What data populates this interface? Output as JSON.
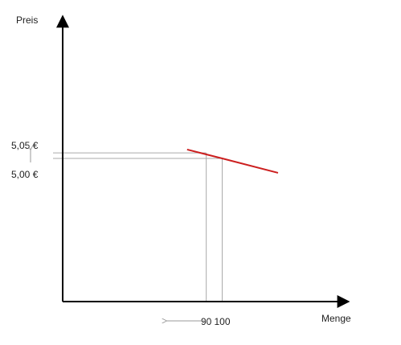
{
  "chart_data": {
    "type": "line",
    "title": "",
    "xlabel": "Menge",
    "ylabel": "Preis",
    "grid": false,
    "colors": {
      "demand_line": "#cc1f1f",
      "axis": "#000000",
      "guides": "#aaaaaa"
    },
    "series": [
      {
        "points": [
          {
            "x": 78,
            "y": 5.08
          },
          {
            "x": 100,
            "y": 5.0
          },
          {
            "x": 135,
            "y": 4.87
          }
        ]
      }
    ],
    "reference_x": [
      {
        "value": 90,
        "label": "90"
      },
      {
        "value": 100,
        "label": "100"
      }
    ],
    "reference_y": [
      {
        "value": 5.05,
        "label": "5,05 €"
      },
      {
        "value": 5.0,
        "label": "5,00 €"
      }
    ],
    "annotations": {
      "x_change_arrow": "90 ← 100",
      "y_change_arrow": "5,00 € → 5,05 €"
    }
  }
}
